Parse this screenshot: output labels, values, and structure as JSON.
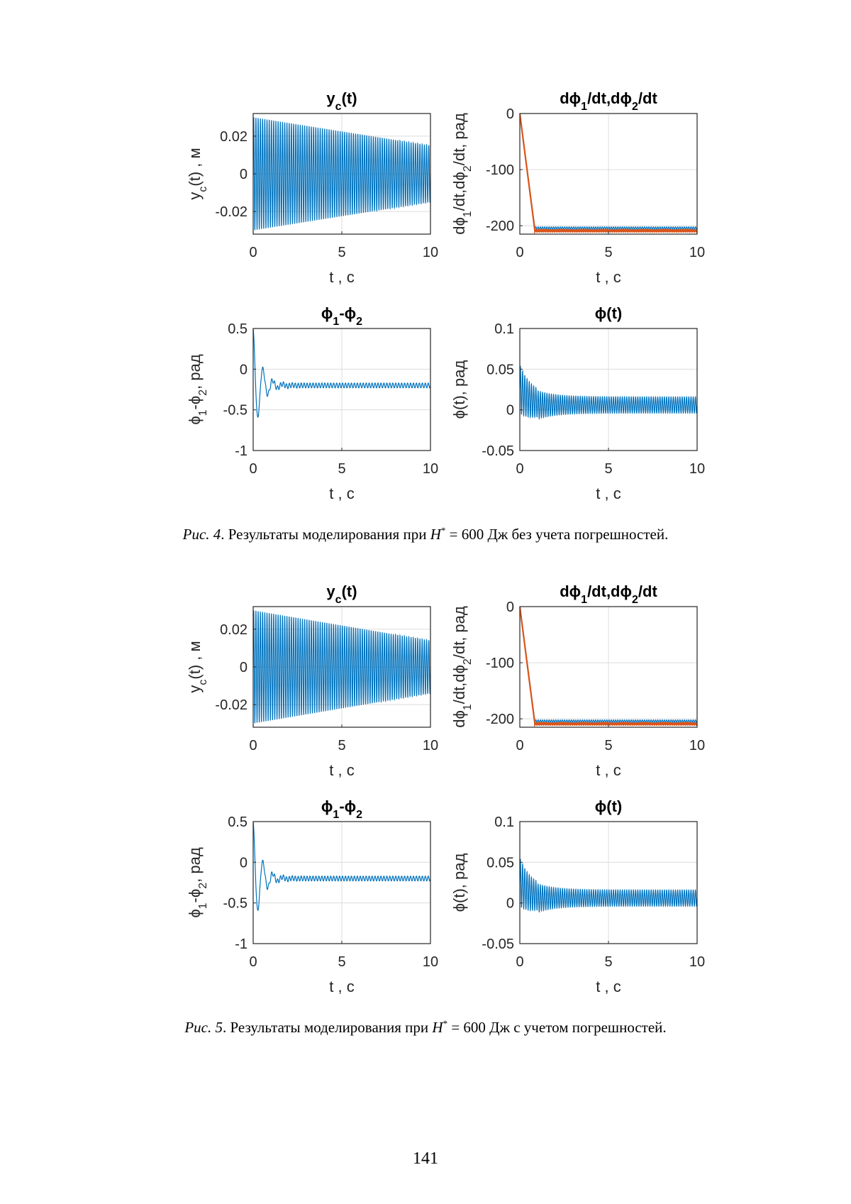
{
  "colors": {
    "series1": "#0072BD",
    "series2": "#D95319",
    "grid": "#dcdcdc",
    "axis": "#262626"
  },
  "figures": [
    {
      "id": "fig4",
      "caption": {
        "prefix": "Рис. 4",
        "text": ". Результаты моделирования при ",
        "var": "H",
        "sup": "*",
        "rest": " = 600 Дж без учета погрешностей."
      },
      "chart_data": [
        {
          "type": "line",
          "title": "yc(t)",
          "xlabel": "t , c",
          "ylabel": "yc(t) , м",
          "xlim": [
            0,
            10
          ],
          "ylim": [
            -0.032,
            0.032
          ],
          "xticks": [
            "0",
            "5",
            "10"
          ],
          "yticks": [
            "0.02",
            "0",
            "-0.02"
          ],
          "ytick_values": [
            0.02,
            0,
            -0.02
          ],
          "grid": true,
          "series": [
            {
              "values": {
                "kind": "oscillation",
                "freq_hz": 8,
                "amp_start": 0.03,
                "amp_end": 0.015,
                "offset": 0
              }
            }
          ]
        },
        {
          "type": "line",
          "title": "dϕ1/dt,dϕ2/dt",
          "xlabel": "t , c",
          "ylabel": "dϕ1/dt,dϕ2/dt, рад",
          "xlim": [
            0,
            10
          ],
          "ylim": [
            -215,
            0
          ],
          "xticks": [
            "0",
            "5",
            "10"
          ],
          "yticks": [
            "0",
            "-100",
            "-200"
          ],
          "ytick_values": [
            0,
            -100,
            -200
          ],
          "grid": true,
          "series": [
            {
              "values": {
                "kind": "ramp",
                "t_settle": 0.85,
                "final": -204,
                "ripple": 2
              }
            },
            {
              "values": {
                "kind": "ramp",
                "t_settle": 0.85,
                "final": -209,
                "ripple": 2
              }
            }
          ]
        },
        {
          "type": "line",
          "title": "ϕ1-ϕ2",
          "xlabel": "t , c",
          "ylabel": "ϕ1-ϕ2, рад",
          "xlim": [
            0,
            10
          ],
          "ylim": [
            -1,
            0.5
          ],
          "xticks": [
            "0",
            "5",
            "10"
          ],
          "yticks": [
            "0.5",
            "0",
            "-0.5",
            "-1"
          ],
          "ytick_values": [
            0.5,
            0,
            -0.5,
            -1
          ],
          "grid": true,
          "series": [
            {
              "values": {
                "kind": "damped",
                "start": 0.5,
                "final": -0.2,
                "freq_hz": 1.8,
                "decay": 2.2,
                "ripple": 0.03,
                "ripple_freq_hz": 6
              }
            }
          ]
        },
        {
          "type": "line",
          "title": "ϕ(t)",
          "xlabel": "t , c",
          "ylabel": "ϕ(t), рад",
          "xlim": [
            0,
            10
          ],
          "ylim": [
            -0.05,
            0.1
          ],
          "xticks": [
            "0",
            "5",
            "10"
          ],
          "yticks": [
            "0.1",
            "0.05",
            "0",
            "-0.05"
          ],
          "ytick_values": [
            0.1,
            0.05,
            0,
            -0.05
          ],
          "grid": true,
          "series": [
            {
              "values": {
                "kind": "oscillation_decay",
                "freq_hz": 8,
                "offset": 0.006,
                "amp_start": 0.06,
                "amp_end": 0.02,
                "t_decay": 1.0
              }
            }
          ]
        }
      ]
    },
    {
      "id": "fig5",
      "caption": {
        "prefix": "Рис. 5",
        "text": ". Результаты моделирования при ",
        "var": "H",
        "sup": "*",
        "rest": " = 600 Дж с учетом погрешностей."
      },
      "chart_data": [
        {
          "type": "line",
          "title": "yc(t)",
          "xlabel": "t , c",
          "ylabel": "yc(t) , м",
          "xlim": [
            0,
            10
          ],
          "ylim": [
            -0.032,
            0.032
          ],
          "xticks": [
            "0",
            "5",
            "10"
          ],
          "yticks": [
            "0.02",
            "0",
            "-0.02"
          ],
          "ytick_values": [
            0.02,
            0,
            -0.02
          ],
          "grid": true,
          "series": [
            {
              "values": {
                "kind": "oscillation",
                "freq_hz": 8,
                "amp_start": 0.03,
                "amp_end": 0.014,
                "offset": 0
              }
            }
          ]
        },
        {
          "type": "line",
          "title": "dϕ1/dt,dϕ2/dt",
          "xlabel": "t , c",
          "ylabel": "dϕ1/dt,dϕ2/dt, рад",
          "xlim": [
            0,
            10
          ],
          "ylim": [
            -215,
            0
          ],
          "xticks": [
            "0",
            "5",
            "10"
          ],
          "yticks": [
            "0",
            "-100",
            "-200"
          ],
          "ytick_values": [
            0,
            -100,
            -200
          ],
          "grid": true,
          "series": [
            {
              "values": {
                "kind": "ramp",
                "t_settle": 0.85,
                "final": -204,
                "ripple": 2
              }
            },
            {
              "values": {
                "kind": "ramp",
                "t_settle": 0.85,
                "final": -209,
                "ripple": 2
              }
            }
          ]
        },
        {
          "type": "line",
          "title": "ϕ1-ϕ2",
          "xlabel": "t , c",
          "ylabel": "ϕ1-ϕ2, рад",
          "xlim": [
            0,
            10
          ],
          "ylim": [
            -1,
            0.5
          ],
          "xticks": [
            "0",
            "5",
            "10"
          ],
          "yticks": [
            "0.5",
            "0",
            "-0.5",
            "-1"
          ],
          "ytick_values": [
            0.5,
            0,
            -0.5,
            -1
          ],
          "grid": true,
          "series": [
            {
              "values": {
                "kind": "damped",
                "start": 0.5,
                "final": -0.2,
                "freq_hz": 1.8,
                "decay": 2.2,
                "ripple": 0.03,
                "ripple_freq_hz": 6
              }
            }
          ]
        },
        {
          "type": "line",
          "title": "ϕ(t)",
          "xlabel": "t , c",
          "ylabel": "ϕ(t), рад",
          "xlim": [
            0,
            10
          ],
          "ylim": [
            -0.05,
            0.1
          ],
          "xticks": [
            "0",
            "5",
            "10"
          ],
          "yticks": [
            "0.1",
            "0.05",
            "0",
            "-0.05"
          ],
          "ytick_values": [
            0.1,
            0.05,
            0,
            -0.05
          ],
          "grid": true,
          "series": [
            {
              "values": {
                "kind": "oscillation_decay",
                "freq_hz": 8,
                "offset": 0.006,
                "amp_start": 0.06,
                "amp_end": 0.02,
                "t_decay": 1.0
              }
            }
          ]
        }
      ]
    }
  ],
  "page_number": "141"
}
